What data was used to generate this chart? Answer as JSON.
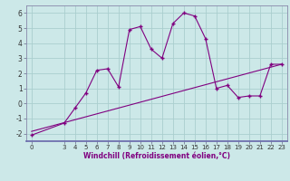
{
  "xlabel": "Windchill (Refroidissement éolien,°C)",
  "x_values": [
    0,
    3,
    4,
    5,
    6,
    7,
    8,
    9,
    10,
    11,
    12,
    13,
    14,
    15,
    16,
    17,
    18,
    19,
    20,
    21,
    22,
    23
  ],
  "y_main": [
    -2.1,
    -1.3,
    -0.3,
    0.7,
    2.2,
    2.3,
    1.1,
    4.9,
    5.1,
    3.6,
    3.0,
    5.3,
    6.0,
    5.8,
    4.3,
    1.0,
    1.2,
    0.4,
    0.5,
    0.5,
    2.6,
    2.6
  ],
  "line_color": "#800080",
  "bg_color": "#cce8e8",
  "grid_color": "#aacece",
  "xlim": [
    -0.5,
    23.5
  ],
  "ylim": [
    -2.5,
    6.5
  ],
  "yticks": [
    -2,
    -1,
    0,
    1,
    2,
    3,
    4,
    5,
    6
  ],
  "xticks": [
    0,
    3,
    4,
    5,
    6,
    7,
    8,
    9,
    10,
    11,
    12,
    13,
    14,
    15,
    16,
    17,
    18,
    19,
    20,
    21,
    22,
    23
  ],
  "trend_x": [
    0,
    23
  ],
  "trend_y": [
    -1.85,
    2.6
  ],
  "marker": "+"
}
